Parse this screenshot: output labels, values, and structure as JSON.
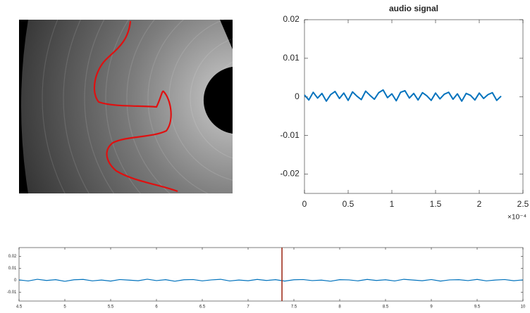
{
  "chart_data": [
    {
      "type": "line",
      "title": "audio signal",
      "x": [
        0,
        0.05,
        0.1,
        0.15,
        0.2,
        0.25,
        0.3,
        0.35,
        0.4,
        0.45,
        0.5,
        0.55,
        0.6,
        0.65,
        0.7,
        0.75,
        0.8,
        0.85,
        0.9,
        0.95,
        1,
        1.05,
        1.1,
        1.15,
        1.2,
        1.25,
        1.3,
        1.35,
        1.4,
        1.45,
        1.5,
        1.55,
        1.6,
        1.65,
        1.7,
        1.75,
        1.8,
        1.85,
        1.9,
        1.95,
        2,
        2.05,
        2.1,
        2.15,
        2.2,
        2.25
      ],
      "series": [
        {
          "color": "#0072bd",
          "values": [
            0.0005,
            -0.0008,
            0.0012,
            -0.0003,
            0.0009,
            -0.0011,
            0.0006,
            0.0014,
            -0.0004,
            0.001,
            -0.0009,
            0.0013,
            0.0002,
            -0.0007,
            0.0015,
            0.0004,
            -0.0006,
            0.0011,
            0.0018,
            -0.0002,
            0.0008,
            -0.001,
            0.0012,
            0.0016,
            -0.0003,
            0.0009,
            -0.0008,
            0.0011,
            0.0003,
            -0.0009,
            0.001,
            -0.0005,
            0.0007,
            0.0012,
            -0.0006,
            0.0008,
            -0.0011,
            0.0009,
            0.0004,
            -0.0008,
            0.001,
            -0.0004,
            0.0006,
            0.0011,
            -0.0009,
            0.0002
          ]
        }
      ],
      "xlim": [
        0,
        2.5
      ],
      "xticks": [
        0,
        0.5,
        1,
        1.5,
        2,
        2.5
      ],
      "ylim": [
        -0.025,
        0.02
      ],
      "yticks": [
        -0.02,
        -0.01,
        0,
        0.01,
        0.02
      ],
      "x_offset_label": "×10⁻⁴"
    },
    {
      "type": "line",
      "x": [
        4.5,
        4.6,
        4.7,
        4.8,
        4.9,
        5,
        5.1,
        5.2,
        5.3,
        5.4,
        5.5,
        5.6,
        5.7,
        5.8,
        5.9,
        6,
        6.1,
        6.2,
        6.3,
        6.4,
        6.5,
        6.6,
        6.7,
        6.8,
        6.9,
        7,
        7.1,
        7.2,
        7.3,
        7.4,
        7.5,
        7.6,
        7.7,
        7.8,
        7.9,
        8,
        8.1,
        8.2,
        8.3,
        8.4,
        8.5,
        8.6,
        8.7,
        8.8,
        8.9,
        9,
        9.1,
        9.2,
        9.3,
        9.4,
        9.5,
        9.6,
        9.7,
        9.8,
        9.9,
        10
      ],
      "series": [
        {
          "color": "#0072bd",
          "values": [
            0.0003,
            -0.0006,
            0.0008,
            -0.0002,
            0.0005,
            -0.0009,
            0.0004,
            0.0007,
            -0.0005,
            0.0002,
            -0.0007,
            0.0006,
            0.0001,
            -0.0004,
            0.0009,
            -0.0003,
            0.0005,
            -0.0008,
            0.0004,
            0.0006,
            -0.0005,
            0.0003,
            0.0008,
            -0.0006,
            0.0002,
            -0.0004,
            0.0007,
            -0.0002,
            0.0005,
            -0.0007,
            0.0004,
            0.0006,
            -0.0003,
            0.0001,
            -0.0008,
            0.0005,
            0.0003,
            -0.0005,
            0.0007,
            -0.0002,
            0.0004,
            -0.0006,
            0.0008,
            0.0002,
            -0.0004,
            0.0006,
            -0.0007,
            0.0003,
            0.0005,
            -0.0003,
            0.0007,
            -0.0005,
            0.0002,
            0.0006,
            -0.0004,
            0.0003
          ]
        }
      ],
      "xlim": [
        4.5,
        10
      ],
      "xticks": [
        4.5,
        5,
        5.5,
        6,
        6.5,
        7,
        7.5,
        8,
        8.5,
        9,
        9.5,
        10
      ],
      "ylim": [
        -0.0175,
        0.0275
      ],
      "yticks": [
        -0.01,
        0,
        0.01,
        0.02
      ],
      "vlines": [
        {
          "x": 7.37,
          "color": "#a0301e"
        }
      ]
    }
  ]
}
